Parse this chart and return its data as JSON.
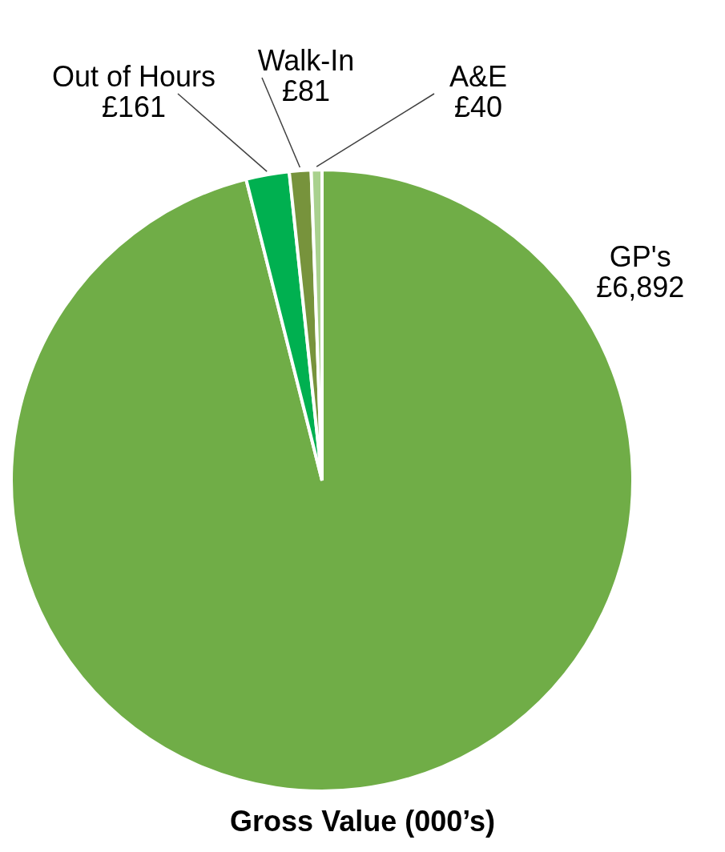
{
  "chart_data": {
    "type": "pie",
    "title": "Gross Value (000’s)",
    "categories": [
      "GP's",
      "Out of Hours",
      "Walk-In",
      "A&E"
    ],
    "values": [
      6892,
      161,
      81,
      40
    ],
    "colors": [
      "#70ad47",
      "#00b050",
      "#77933c",
      "#a9d18e"
    ],
    "value_labels": [
      "£6,892",
      "£161",
      "£81",
      "£40"
    ]
  }
}
